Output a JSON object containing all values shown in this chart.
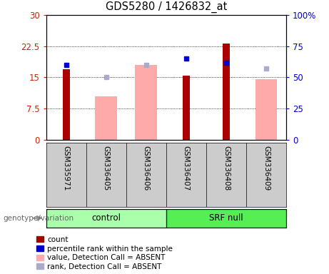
{
  "title": "GDS5280 / 1426832_at",
  "samples": [
    "GSM335971",
    "GSM336405",
    "GSM336406",
    "GSM336407",
    "GSM336408",
    "GSM336409"
  ],
  "count_values": [
    17.0,
    null,
    null,
    15.5,
    23.2,
    null
  ],
  "rank_values": [
    60.0,
    null,
    null,
    65.0,
    62.0,
    null
  ],
  "absent_value_bars": [
    null,
    10.5,
    18.0,
    null,
    null,
    14.5
  ],
  "absent_rank_dots": [
    null,
    50.0,
    60.0,
    null,
    null,
    57.0
  ],
  "left_ylim": [
    0,
    30
  ],
  "right_ylim": [
    0,
    100
  ],
  "left_yticks": [
    0,
    7.5,
    15,
    22.5,
    30
  ],
  "right_yticks": [
    0,
    25,
    50,
    75,
    100
  ],
  "left_yticklabels": [
    "0",
    "7.5",
    "15",
    "22.5",
    "30"
  ],
  "right_yticklabels": [
    "0",
    "25",
    "50",
    "75",
    "100%"
  ],
  "count_color": "#aa0000",
  "absent_value_color": "#ffaaaa",
  "rank_color": "#0000cc",
  "absent_rank_color": "#aaaacc",
  "tick_color_left": "#cc2200",
  "tick_color_right": "#0000cc",
  "control_group_color": "#aaffaa",
  "srf_group_color": "#55ee55",
  "sample_bg_color": "#cccccc",
  "legend_items": [
    {
      "label": "count",
      "color": "#aa0000"
    },
    {
      "label": "percentile rank within the sample",
      "color": "#0000cc"
    },
    {
      "label": "value, Detection Call = ABSENT",
      "color": "#ffaaaa"
    },
    {
      "label": "rank, Detection Call = ABSENT",
      "color": "#aaaacc"
    }
  ],
  "genotype_label": "genotype/variation",
  "figsize": [
    4.61,
    3.84
  ],
  "dpi": 100
}
